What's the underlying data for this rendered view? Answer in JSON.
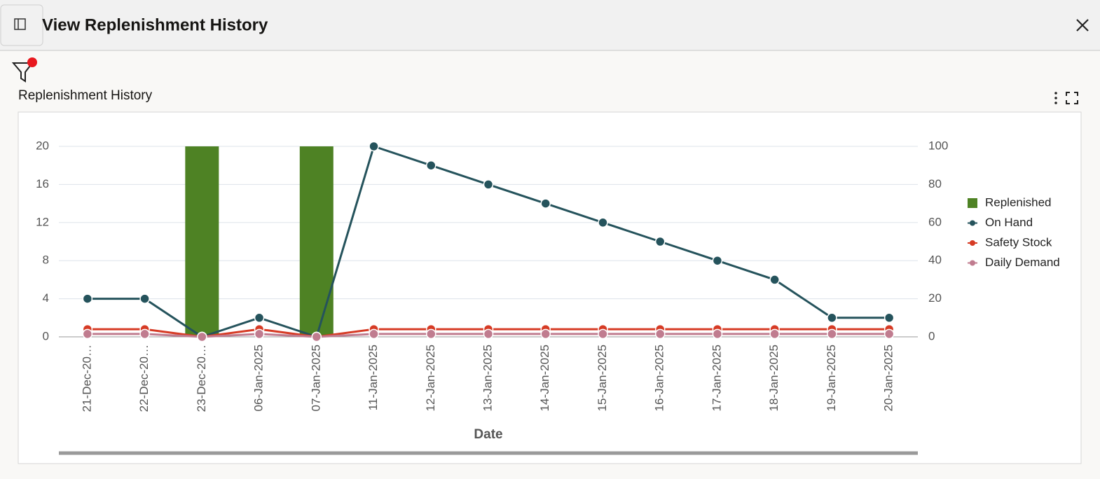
{
  "header": {
    "title": "View Replenishment History"
  },
  "panel": {
    "title": "Replenishment History"
  },
  "chart_data": {
    "type": "bar-line",
    "x_label": "Date",
    "categories": [
      "21-Dec-20…",
      "22-Dec-20…",
      "23-Dec-20…",
      "06-Jan-2025",
      "07-Jan-2025",
      "11-Jan-2025",
      "12-Jan-2025",
      "13-Jan-2025",
      "14-Jan-2025",
      "15-Jan-2025",
      "16-Jan-2025",
      "17-Jan-2025",
      "18-Jan-2025",
      "19-Jan-2025",
      "20-Jan-2025"
    ],
    "series": [
      {
        "name": "Replenished",
        "type": "bar",
        "color": "#4e8224",
        "values": [
          0,
          0,
          20,
          0,
          20,
          0,
          0,
          0,
          0,
          0,
          0,
          0,
          0,
          0,
          0
        ]
      },
      {
        "name": "On Hand",
        "type": "line",
        "axis": "y2",
        "color": "#25535c",
        "values": [
          20,
          20,
          0,
          10,
          0,
          100,
          90,
          80,
          70,
          60,
          50,
          40,
          30,
          10,
          10
        ]
      },
      {
        "name": "Safety Stock",
        "type": "line",
        "axis": "y2",
        "color": "#d63b25",
        "values": [
          4,
          4,
          0,
          4,
          0,
          4,
          4,
          4,
          4,
          4,
          4,
          4,
          4,
          4,
          4
        ]
      },
      {
        "name": "Daily Demand",
        "type": "line",
        "axis": "y2",
        "color": "#c07c8f",
        "values": [
          1.5,
          1.5,
          0,
          1.5,
          0,
          1.5,
          1.5,
          1.5,
          1.5,
          1.5,
          1.5,
          1.5,
          1.5,
          1.5,
          1.5
        ]
      }
    ],
    "ylim": [
      0,
      20
    ],
    "yticks": [
      0,
      4,
      8,
      12,
      16,
      20
    ],
    "y2lim": [
      0,
      100
    ],
    "y2ticks": [
      0,
      20,
      40,
      60,
      80,
      100
    ],
    "grid": true,
    "legend": "right"
  }
}
